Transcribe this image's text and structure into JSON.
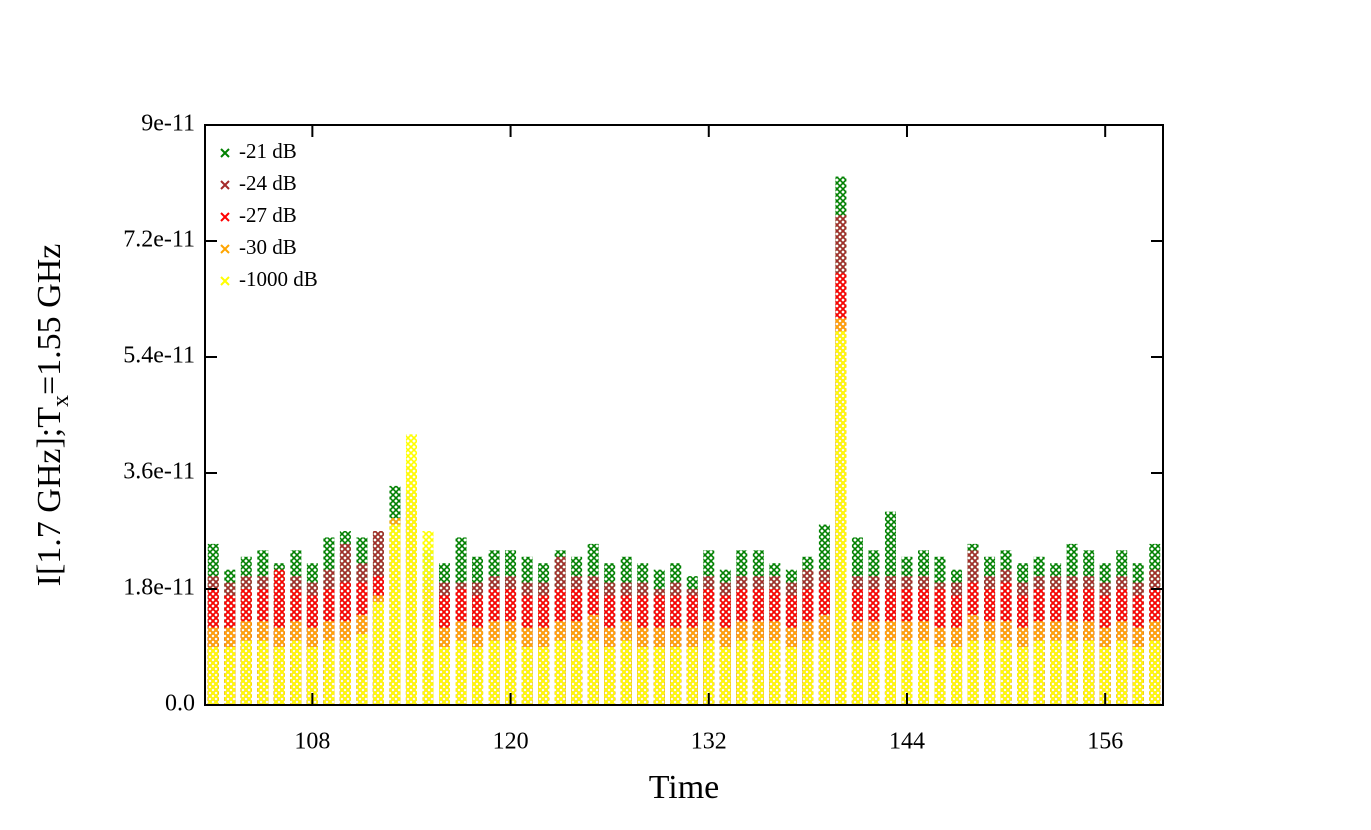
{
  "chart_data": {
    "type": "scatter",
    "x_label": "Time",
    "y_label": {
      "main": "I[1.7 GHz];T",
      "sub": "x",
      "tail": "=1.55 GHz"
    },
    "x": [
      102,
      103,
      104,
      105,
      106,
      107,
      108,
      109,
      110,
      111,
      112,
      113,
      114,
      115,
      116,
      117,
      118,
      119,
      120,
      121,
      122,
      123,
      124,
      125,
      126,
      127,
      128,
      129,
      130,
      131,
      132,
      133,
      134,
      135,
      136,
      137,
      138,
      139,
      140,
      141,
      142,
      143,
      144,
      145,
      146,
      147,
      148,
      149,
      150,
      151,
      152,
      153,
      154,
      155,
      156,
      157,
      158,
      159
    ],
    "series": [
      {
        "name": "-21 dB",
        "color": "#008000",
        "values": [
          2.5e-11,
          2.1e-11,
          2.3e-11,
          2.4e-11,
          2.2e-11,
          2.4e-11,
          2.2e-11,
          2.6e-11,
          2.7e-11,
          2.6e-11,
          2.7e-11,
          3.4e-11,
          3.3e-11,
          2.4e-11,
          2.2e-11,
          2.6e-11,
          2.3e-11,
          2.4e-11,
          2.4e-11,
          2.3e-11,
          2.2e-11,
          2.4e-11,
          2.3e-11,
          2.5e-11,
          2.2e-11,
          2.3e-11,
          2.2e-11,
          2.1e-11,
          2.2e-11,
          2e-11,
          2.4e-11,
          2.1e-11,
          2.4e-11,
          2.4e-11,
          2.2e-11,
          2.1e-11,
          2.3e-11,
          2.8e-11,
          8.2e-11,
          2.6e-11,
          2.4e-11,
          3e-11,
          2.3e-11,
          2.4e-11,
          2.3e-11,
          2.1e-11,
          2.5e-11,
          2.3e-11,
          2.4e-11,
          2.2e-11,
          2.3e-11,
          2.2e-11,
          2.5e-11,
          2.4e-11,
          2.2e-11,
          2.4e-11,
          2.2e-11,
          2.5e-11
        ]
      },
      {
        "name": "-24 dB",
        "color": "#a52a2a",
        "values": [
          2e-11,
          1.9e-11,
          2e-11,
          2e-11,
          1.9e-11,
          2e-11,
          1.9e-11,
          2.1e-11,
          2.5e-11,
          2.2e-11,
          2.7e-11,
          2.6e-11,
          3.2e-11,
          2e-11,
          1.9e-11,
          1.9e-11,
          1.9e-11,
          2e-11,
          2e-11,
          1.9e-11,
          1.9e-11,
          2.3e-11,
          2e-11,
          2e-11,
          1.9e-11,
          1.9e-11,
          1.9e-11,
          1.8e-11,
          1.9e-11,
          1.8e-11,
          2e-11,
          1.9e-11,
          2e-11,
          2e-11,
          2e-11,
          1.9e-11,
          2.1e-11,
          2.1e-11,
          7.6e-11,
          2e-11,
          2e-11,
          2e-11,
          2e-11,
          2e-11,
          1.9e-11,
          1.9e-11,
          2.4e-11,
          2e-11,
          2.1e-11,
          1.9e-11,
          2e-11,
          2e-11,
          2e-11,
          2e-11,
          1.9e-11,
          2e-11,
          1.9e-11,
          2.1e-11
        ]
      },
      {
        "name": "-27 dB",
        "color": "#ff0000",
        "values": [
          1.8e-11,
          1.7e-11,
          1.8e-11,
          1.8e-11,
          2.1e-11,
          1.8e-11,
          1.7e-11,
          1.8e-11,
          1.9e-11,
          1.9e-11,
          2e-11,
          2.5e-11,
          3e-11,
          1.8e-11,
          1.7e-11,
          1.8e-11,
          1.7e-11,
          1.8e-11,
          1.8e-11,
          1.7e-11,
          1.7e-11,
          1.8e-11,
          1.8e-11,
          1.8e-11,
          1.7e-11,
          1.7e-11,
          1.7e-11,
          1.7e-11,
          1.7e-11,
          1.7e-11,
          1.8e-11,
          1.7e-11,
          1.8e-11,
          1.8e-11,
          1.8e-11,
          1.7e-11,
          1.8e-11,
          1.9e-11,
          6.7e-11,
          1.8e-11,
          1.8e-11,
          1.8e-11,
          1.8e-11,
          1.8e-11,
          1.8e-11,
          1.7e-11,
          1.9e-11,
          1.8e-11,
          1.9e-11,
          1.7e-11,
          1.8e-11,
          1.8e-11,
          1.8e-11,
          1.8e-11,
          1.7e-11,
          1.8e-11,
          1.7e-11,
          1.8e-11
        ]
      },
      {
        "name": "-30 dB",
        "color": "#ffa500",
        "values": [
          1.2e-11,
          1.2e-11,
          1.3e-11,
          1.3e-11,
          1.2e-11,
          1.3e-11,
          1.2e-11,
          1.3e-11,
          1.3e-11,
          1.4e-11,
          1.7e-11,
          2.9e-11,
          3.7e-11,
          1.3e-11,
          1.2e-11,
          1.3e-11,
          1.2e-11,
          1.3e-11,
          1.3e-11,
          1.2e-11,
          1.2e-11,
          1.3e-11,
          1.3e-11,
          1.4e-11,
          1.2e-11,
          1.3e-11,
          1.2e-11,
          1.2e-11,
          1.2e-11,
          1.2e-11,
          1.3e-11,
          1.2e-11,
          1.3e-11,
          1.3e-11,
          1.3e-11,
          1.2e-11,
          1.3e-11,
          1.4e-11,
          6e-11,
          1.3e-11,
          1.3e-11,
          1.3e-11,
          1.3e-11,
          1.3e-11,
          1.2e-11,
          1.2e-11,
          1.4e-11,
          1.3e-11,
          1.3e-11,
          1.2e-11,
          1.3e-11,
          1.3e-11,
          1.3e-11,
          1.3e-11,
          1.2e-11,
          1.3e-11,
          1.2e-11,
          1.3e-11
        ]
      },
      {
        "name": "-1000 dB",
        "color": "#ffff00",
        "values": [
          9e-12,
          9e-12,
          1e-11,
          1e-11,
          9e-12,
          1e-11,
          9e-12,
          1e-11,
          1e-11,
          1.1e-11,
          1.6e-11,
          2.8e-11,
          4.2e-11,
          2.7e-11,
          9e-12,
          1e-11,
          9e-12,
          1e-11,
          1e-11,
          9e-12,
          9e-12,
          1e-11,
          1e-11,
          1e-11,
          9e-12,
          1e-11,
          9e-12,
          9e-12,
          9e-12,
          9e-12,
          1e-11,
          9e-12,
          1e-11,
          1e-11,
          1e-11,
          9e-12,
          1e-11,
          1e-11,
          5.8e-11,
          1e-11,
          1e-11,
          1e-11,
          1e-11,
          1e-11,
          9e-12,
          9e-12,
          1e-11,
          1e-11,
          1e-11,
          9e-12,
          1e-11,
          1e-11,
          1e-11,
          1e-11,
          9e-12,
          1e-11,
          9e-12,
          1e-11
        ]
      }
    ],
    "xlim": [
      101.5,
      159.5
    ],
    "xticks": [
      108,
      120,
      132,
      144,
      156
    ],
    "ylim": [
      0,
      9e-11
    ],
    "yticks": [
      {
        "value": 0,
        "label": "0.0"
      },
      1.8e-11,
      3.6e-11,
      5.4e-11,
      7.2e-11,
      9e-11
    ],
    "legend": "top-left",
    "grid": false
  }
}
